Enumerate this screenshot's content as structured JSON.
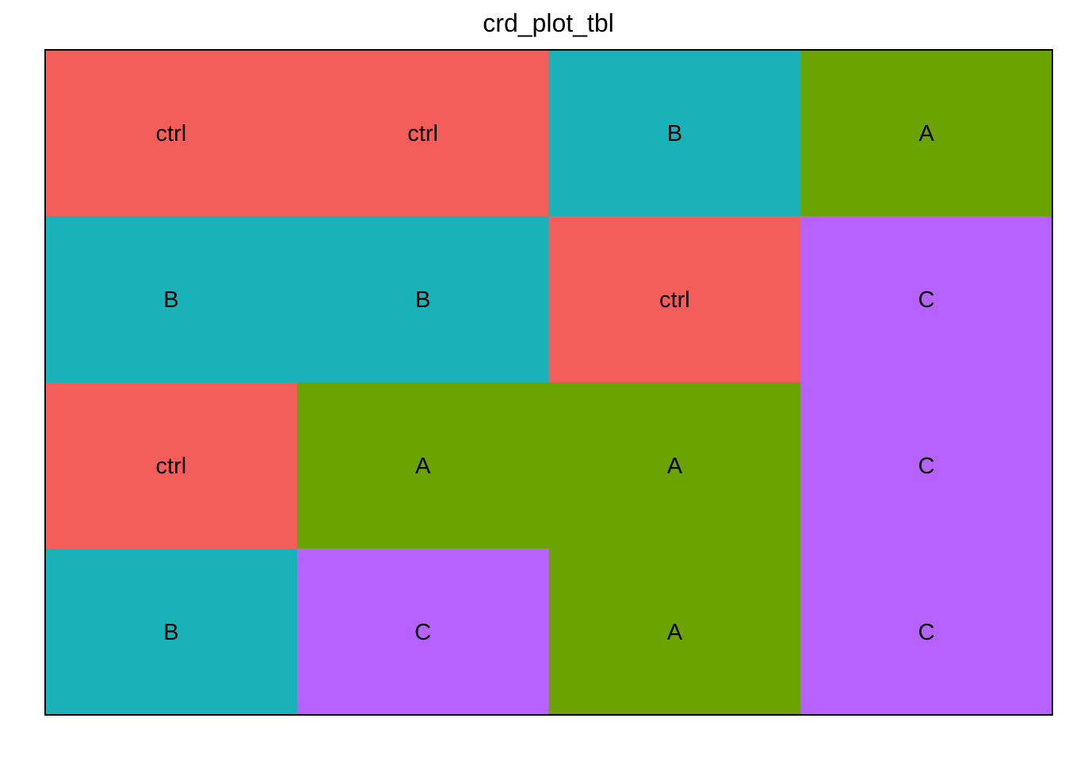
{
  "chart_data": {
    "type": "heatmap",
    "title": "crd_plot_tbl",
    "xlabel": "",
    "ylabel": "",
    "grid": false,
    "legend": "none",
    "n_cols": 4,
    "n_rows": 4,
    "treatment_colors": {
      "ctrl": "#F35E5A",
      "A": "#6BA300",
      "B": "#18B2B8",
      "C": "#B762FE"
    },
    "cells": [
      {
        "row": 1,
        "col": 1,
        "treatment": "ctrl"
      },
      {
        "row": 1,
        "col": 2,
        "treatment": "ctrl"
      },
      {
        "row": 1,
        "col": 3,
        "treatment": "B"
      },
      {
        "row": 1,
        "col": 4,
        "treatment": "A"
      },
      {
        "row": 2,
        "col": 1,
        "treatment": "B"
      },
      {
        "row": 2,
        "col": 2,
        "treatment": "B"
      },
      {
        "row": 2,
        "col": 3,
        "treatment": "ctrl"
      },
      {
        "row": 2,
        "col": 4,
        "treatment": "C"
      },
      {
        "row": 3,
        "col": 1,
        "treatment": "ctrl"
      },
      {
        "row": 3,
        "col": 2,
        "treatment": "A"
      },
      {
        "row": 3,
        "col": 3,
        "treatment": "A"
      },
      {
        "row": 3,
        "col": 4,
        "treatment": "C"
      },
      {
        "row": 4,
        "col": 1,
        "treatment": "B"
      },
      {
        "row": 4,
        "col": 2,
        "treatment": "C"
      },
      {
        "row": 4,
        "col": 3,
        "treatment": "A"
      },
      {
        "row": 4,
        "col": 4,
        "treatment": "C"
      }
    ]
  }
}
